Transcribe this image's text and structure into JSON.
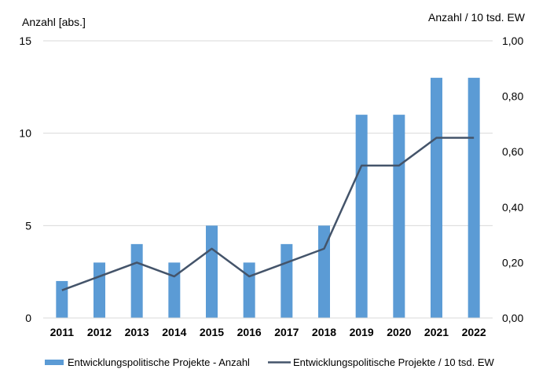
{
  "chart_data": {
    "type": "bar",
    "categories": [
      "2011",
      "2012",
      "2013",
      "2014",
      "2015",
      "2016",
      "2017",
      "2018",
      "2019",
      "2020",
      "2021",
      "2022"
    ],
    "series": [
      {
        "name": "Entwicklungspolitische Projekte - Anzahl",
        "type": "bar",
        "axis": "left",
        "color": "#5b9bd5",
        "values": [
          2,
          3,
          4,
          3,
          5,
          3,
          4,
          5,
          11,
          11,
          13,
          13
        ]
      },
      {
        "name": "Entwicklungspolitische Projekte / 10 tsd. EW",
        "type": "line",
        "axis": "right",
        "color": "#44546a",
        "values": [
          0.1,
          0.15,
          0.2,
          0.15,
          0.25,
          0.15,
          0.2,
          0.25,
          0.55,
          0.55,
          0.65,
          0.65
        ]
      }
    ],
    "ylabel_left": "Anzahl [abs.]",
    "ylabel_right": "Anzahl / 10 tsd. EW",
    "ylim_left": [
      0,
      15
    ],
    "yticks_left": [
      "0",
      "5",
      "10",
      "15"
    ],
    "ylim_right": [
      0,
      1
    ],
    "yticks_right": [
      "0,00",
      "0,20",
      "0,40",
      "0,60",
      "0,80",
      "1,00"
    ],
    "grid": "horizontal",
    "legend": "bottom"
  }
}
